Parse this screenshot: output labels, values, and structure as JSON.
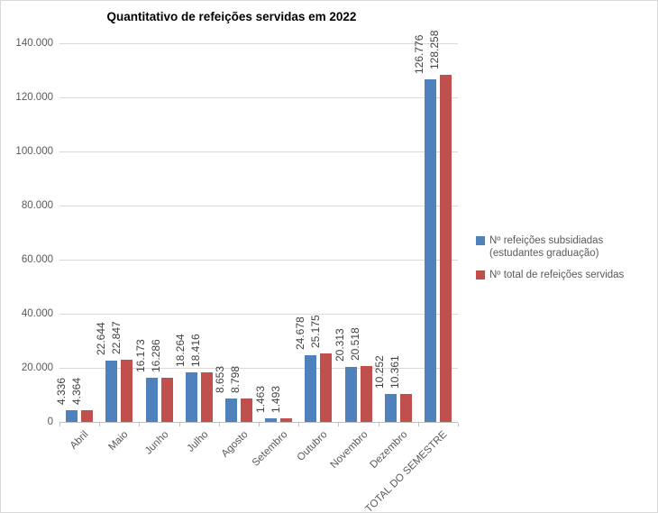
{
  "chart_data": {
    "type": "bar",
    "title": "Quantitativo de refeições servidas em 2022",
    "categories": [
      "Abril",
      "Maio",
      "Junho",
      "Julho",
      "Agosto",
      "Setembro",
      "Outubro",
      "Novembro",
      "Dezembro",
      "TOTAL DO SEMESTRE"
    ],
    "series": [
      {
        "name": "Nº refeições subsidiadas (estudantes graduação)",
        "color": "#4F81BD",
        "values": [
          4336,
          22644,
          16173,
          18264,
          8653,
          1463,
          24678,
          20313,
          10252,
          126776
        ],
        "labels": [
          "4.336",
          "22.644",
          "16.173",
          "18.264",
          "8.653",
          "1.463",
          "24.678",
          "20.313",
          "10.252",
          "126.776"
        ]
      },
      {
        "name": "Nº total de refeições servidas",
        "color": "#C0504D",
        "values": [
          4364,
          22847,
          16286,
          18416,
          8798,
          1493,
          25175,
          20518,
          10361,
          128258
        ],
        "labels": [
          "4.364",
          "22.847",
          "16.286",
          "18.416",
          "8.798",
          "1.493",
          "25.175",
          "20.518",
          "10.361",
          "128.258"
        ]
      }
    ],
    "y_axis": {
      "min": 0,
      "max": 140000,
      "step": 20000,
      "tick_labels": [
        "0",
        "20.000",
        "40.000",
        "60.000",
        "80.000",
        "100.000",
        "120.000",
        "140.000"
      ]
    },
    "legend_position": "right",
    "grid": true,
    "colors": {
      "gridline": "#D9D9D9",
      "axis_line": "#BFBFBF",
      "axis_text": "#595959",
      "data_label_text": "#404040",
      "title_text": "#000000"
    }
  }
}
